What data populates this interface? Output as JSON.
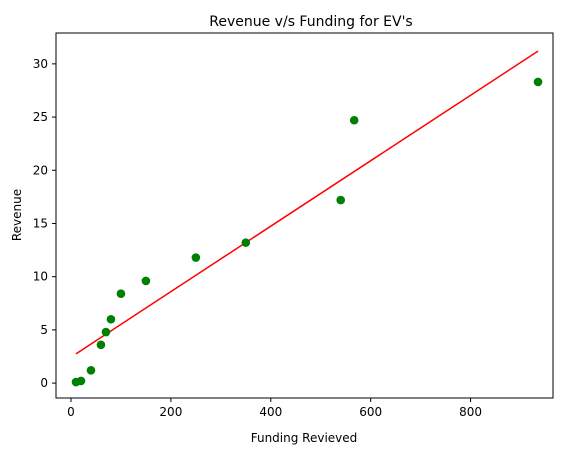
{
  "chart_data": {
    "type": "scatter",
    "title": "Revenue v/s Funding for EV's",
    "xlabel": "Funding Revieved",
    "ylabel": "Revenue",
    "xlim": [
      -30,
      965
    ],
    "ylim": [
      -1.4,
      32.9
    ],
    "x_ticks": [
      0,
      200,
      400,
      600,
      800
    ],
    "x_tick_labels": [
      "0",
      "200",
      "400",
      "600",
      "800"
    ],
    "y_ticks": [
      0,
      5,
      10,
      15,
      20,
      25,
      30
    ],
    "y_tick_labels": [
      "0",
      "5",
      "10",
      "15",
      "20",
      "25",
      "30"
    ],
    "grid": false,
    "series": [
      {
        "kind": "points",
        "color": "#008000",
        "x": [
          10,
          20,
          40,
          60,
          70,
          80,
          100,
          150,
          250,
          350,
          540,
          567,
          935
        ],
        "y": [
          0.1,
          0.2,
          1.2,
          3.6,
          4.8,
          6.0,
          8.4,
          9.6,
          11.8,
          13.2,
          17.2,
          24.7,
          28.3
        ]
      },
      {
        "kind": "fit-line",
        "color": "#ff0000",
        "x": [
          10,
          935
        ],
        "y": [
          2.75,
          31.2
        ]
      }
    ]
  }
}
